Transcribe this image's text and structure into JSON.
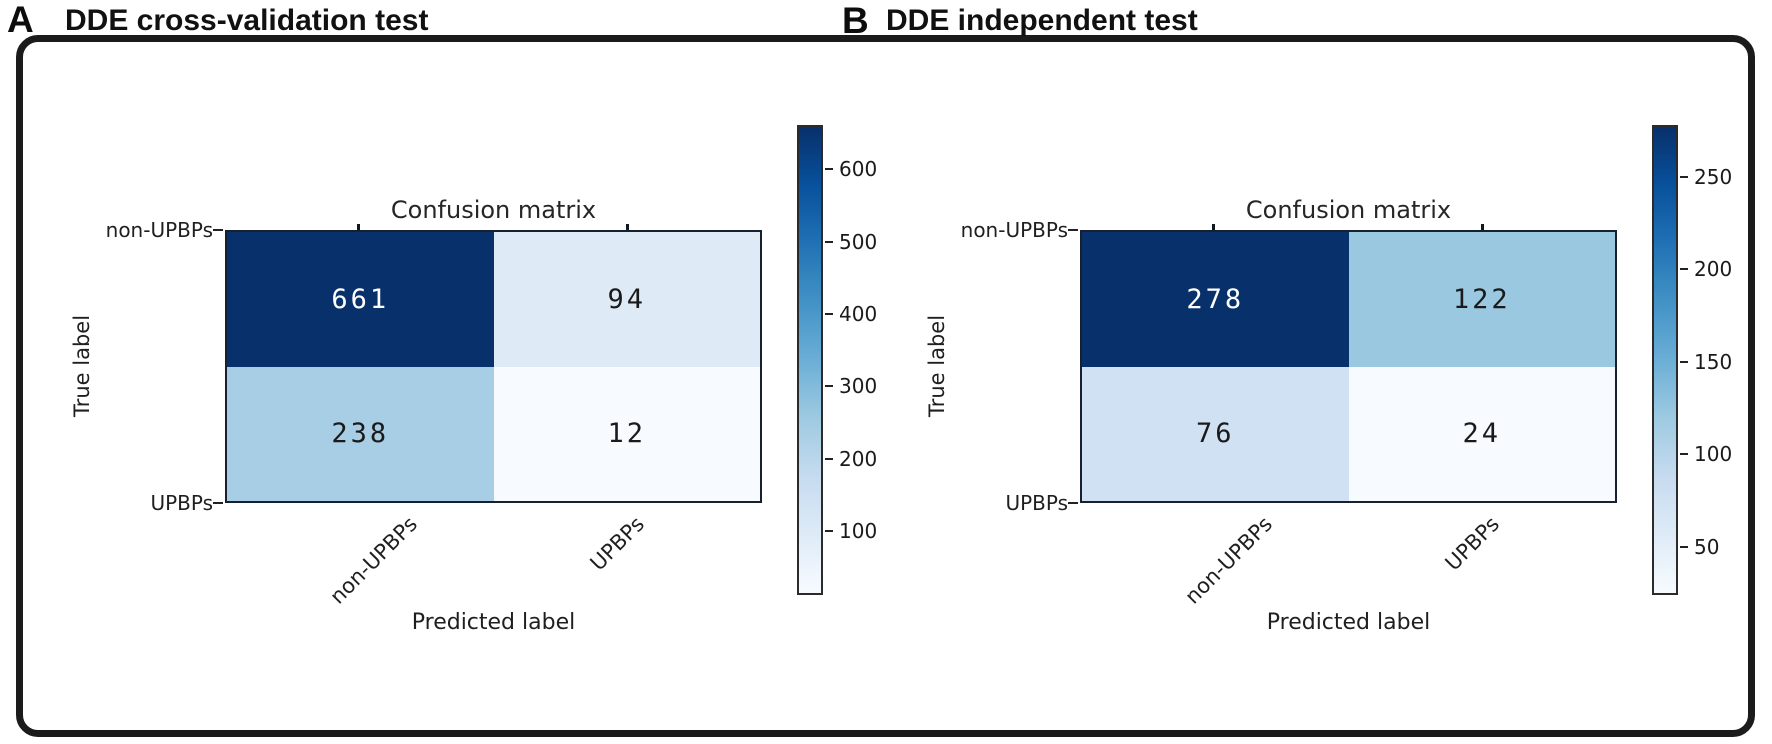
{
  "chart_data": [
    {
      "type": "heatmap",
      "panel_letter": "A",
      "panel_title": "DDE cross-validation test",
      "title": "Confusion matrix",
      "xlabel": "Predicted label",
      "ylabel": "True label",
      "x_tick_labels": [
        "non-UPBPs",
        "UPBPs"
      ],
      "y_tick_labels": [
        "non-UPBPs",
        "UPBPs"
      ],
      "matrix": [
        [
          661,
          94
        ],
        [
          238,
          12
        ]
      ],
      "vmin": 12,
      "vmax": 661,
      "colormap": "Blues",
      "colorbar_ticks": [
        100,
        200,
        300,
        400,
        500,
        600
      ],
      "legend_position": "right",
      "grid": false
    },
    {
      "type": "heatmap",
      "panel_letter": "B",
      "panel_title": "DDE independent test",
      "title": "Confusion matrix",
      "xlabel": "Predicted label",
      "ylabel": "True label",
      "x_tick_labels": [
        "non-UPBPs",
        "UPBPs"
      ],
      "y_tick_labels": [
        "non-UPBPs",
        "UPBPs"
      ],
      "matrix": [
        [
          278,
          122
        ],
        [
          76,
          24
        ]
      ],
      "vmin": 24,
      "vmax": 278,
      "colormap": "Blues",
      "colorbar_ticks": [
        50,
        100,
        150,
        200,
        250
      ],
      "legend_position": "right",
      "grid": false
    }
  ],
  "colors": {
    "colormap_dark_end": "#08306b",
    "colormap_light_end": "#f7fbff",
    "frame_border": "#1b1b1b",
    "text": "#1a1a1a",
    "cell_text_on_dark": "#ffffff"
  }
}
